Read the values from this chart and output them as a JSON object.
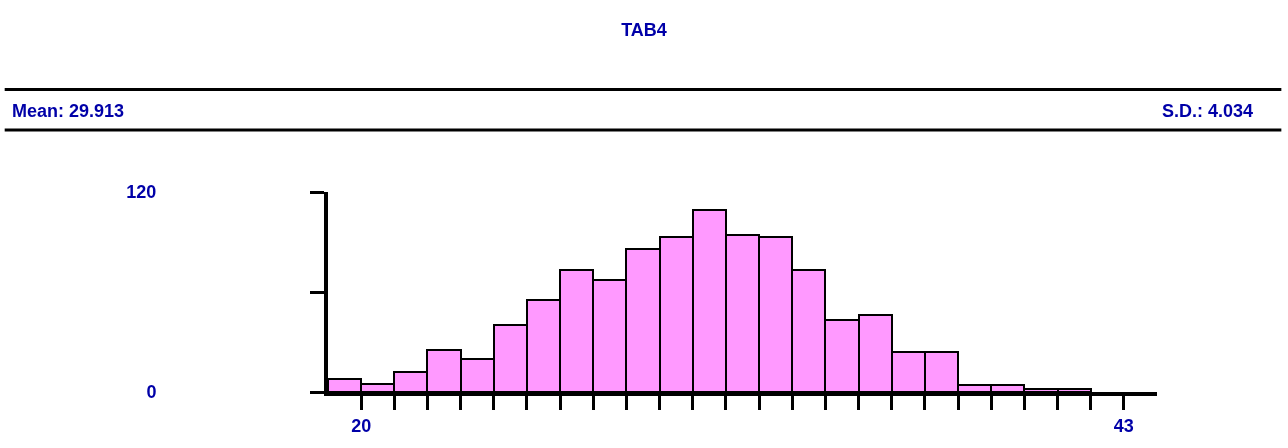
{
  "chart_data": {
    "type": "histogram",
    "title": "TAB4",
    "annotations": [
      "Mean: 29.913",
      "S.D.: 4.034"
    ],
    "bins": [
      19,
      20,
      21,
      22,
      23,
      24,
      25,
      26,
      27,
      28,
      29,
      30,
      31,
      32,
      33,
      34,
      35,
      36,
      37,
      38,
      39,
      40,
      41,
      42
    ],
    "values": [
      8,
      5,
      12,
      25,
      20,
      40,
      55,
      73,
      67,
      86,
      93,
      109,
      94,
      93,
      73,
      43,
      46,
      24,
      24,
      4,
      4,
      2,
      2
    ],
    "color": "#ff99ff",
    "xlim": [
      19,
      44
    ],
    "xticks": [
      20,
      {
        "value": 21,
        "label": null
      },
      {
        "value": 22,
        "label": null
      },
      {
        "value": 23,
        "label": null
      },
      {
        "value": 24,
        "label": null
      },
      {
        "value": 25,
        "label": null
      },
      {
        "value": 26,
        "label": null
      },
      {
        "value": 27,
        "label": null
      },
      {
        "value": 28,
        "label": null
      },
      {
        "value": 29,
        "label": null
      },
      {
        "value": 30,
        "label": null
      },
      {
        "value": 31,
        "label": null
      },
      {
        "value": 32,
        "label": null
      },
      {
        "value": 33,
        "label": null
      },
      {
        "value": 34,
        "label": null
      },
      {
        "value": 35,
        "label": null
      },
      {
        "value": 36,
        "label": null
      },
      {
        "value": 37,
        "label": null
      },
      {
        "value": 38,
        "label": null
      },
      {
        "value": 39,
        "label": null
      },
      {
        "value": 40,
        "label": null
      },
      {
        "value": 41,
        "label": null
      },
      {
        "value": 42,
        "label": null
      },
      43
    ],
    "ylim": [
      0,
      120
    ],
    "yticks": [
      0,
      {
        "value": 60,
        "label": null
      },
      120
    ]
  }
}
